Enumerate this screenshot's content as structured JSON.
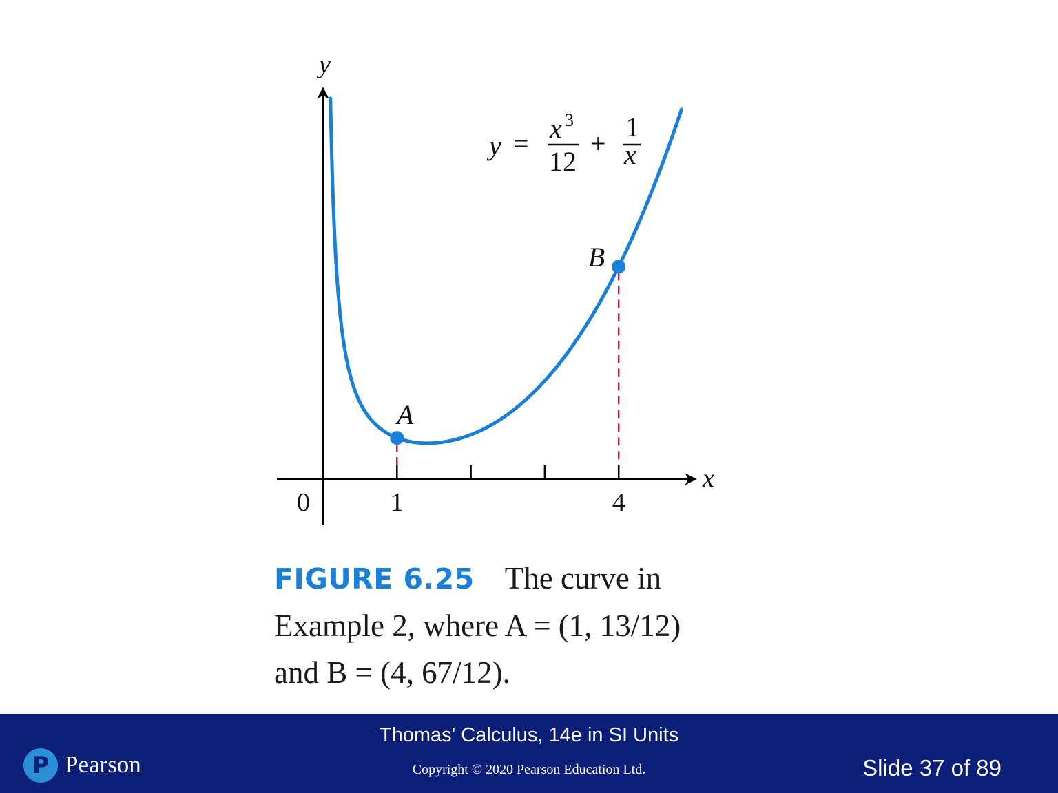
{
  "chart_data": {
    "type": "line",
    "equation": {
      "lhs": "y",
      "eq": "=",
      "num1": "x",
      "num1_exp": "3",
      "den1": "12",
      "plus": "+",
      "num2": "1",
      "den2": "x"
    },
    "xlabel": "x",
    "ylabel": "y",
    "origin_label": "0",
    "x_ticks": [
      1,
      2,
      3,
      4
    ],
    "x_tick_labels": [
      {
        "x": 1,
        "label": "1"
      },
      {
        "x": 4,
        "label": "4"
      }
    ],
    "points": [
      {
        "label": "A",
        "x": 1,
        "y": 1.0833
      },
      {
        "label": "B",
        "x": 4,
        "y": 5.5833
      }
    ],
    "series": [
      {
        "function": "x^3/12 + 1/x",
        "x_min": 0.1,
        "x_max": 4.85,
        "color": "#1a7fd6"
      }
    ],
    "dashed_drops_color": "#c8105a",
    "axis_color": "#000000"
  },
  "caption": {
    "figure_label": "FIGURE 6.25",
    "line1": "The curve in",
    "line2": "Example 2, where A = (1, 13/12)",
    "line3": "and B = (4, 67/12)."
  },
  "footer": {
    "title": "Thomas' Calculus, 14e in SI Units",
    "copyright": "Copyright © 2020 Pearson Education Ltd.",
    "slide": "Slide 37 of 89",
    "logo_text": "Pearson",
    "logo_mark": "P"
  }
}
